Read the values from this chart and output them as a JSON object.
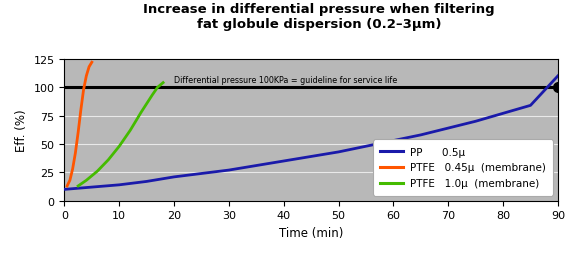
{
  "title_line1": "Increase in differential pressure when filtering",
  "title_line2": "fat globule dispersion (0.2–3μm)",
  "xlabel": "Time (min)",
  "ylabel": "Eff. (%)",
  "xlim": [
    0,
    90
  ],
  "ylim": [
    0,
    125
  ],
  "yticks": [
    0,
    25,
    50,
    75,
    100,
    125
  ],
  "xticks": [
    0,
    10,
    20,
    30,
    40,
    50,
    60,
    70,
    80,
    90
  ],
  "bg_color": "#b8b8b8",
  "guideline_y": 100,
  "guideline_label": "Differential pressure 100KPa = guideline for service life",
  "pp_color": "#1a1aaa",
  "ptfe_045_color": "#FF5500",
  "ptfe_10_color": "#44BB00",
  "pp_x": [
    0,
    5,
    10,
    15,
    20,
    25,
    30,
    35,
    40,
    45,
    50,
    55,
    60,
    65,
    70,
    75,
    80,
    85,
    90
  ],
  "pp_y": [
    10,
    12,
    14,
    17,
    21,
    24,
    27,
    31,
    35,
    39,
    43,
    48,
    53,
    58,
    64,
    70,
    77,
    84,
    110
  ],
  "ptfe_045_x": [
    0.5,
    1.0,
    1.5,
    2.0,
    2.5,
    3.0,
    3.5,
    4.0,
    4.5,
    5.0
  ],
  "ptfe_045_y": [
    13,
    18,
    28,
    42,
    60,
    80,
    98,
    110,
    118,
    122
  ],
  "ptfe_10_x": [
    2.5,
    4,
    6,
    8,
    10,
    12,
    14,
    16,
    17,
    18
  ],
  "ptfe_10_y": [
    13,
    18,
    26,
    36,
    48,
    62,
    78,
    93,
    100,
    104
  ],
  "dot_x": 90,
  "dot_y": 100,
  "legend_labels": [
    "PP      0.5μ",
    "PTFE   0.45μ  (membrane)",
    "PTFE   1.0μ  (membrane)"
  ]
}
